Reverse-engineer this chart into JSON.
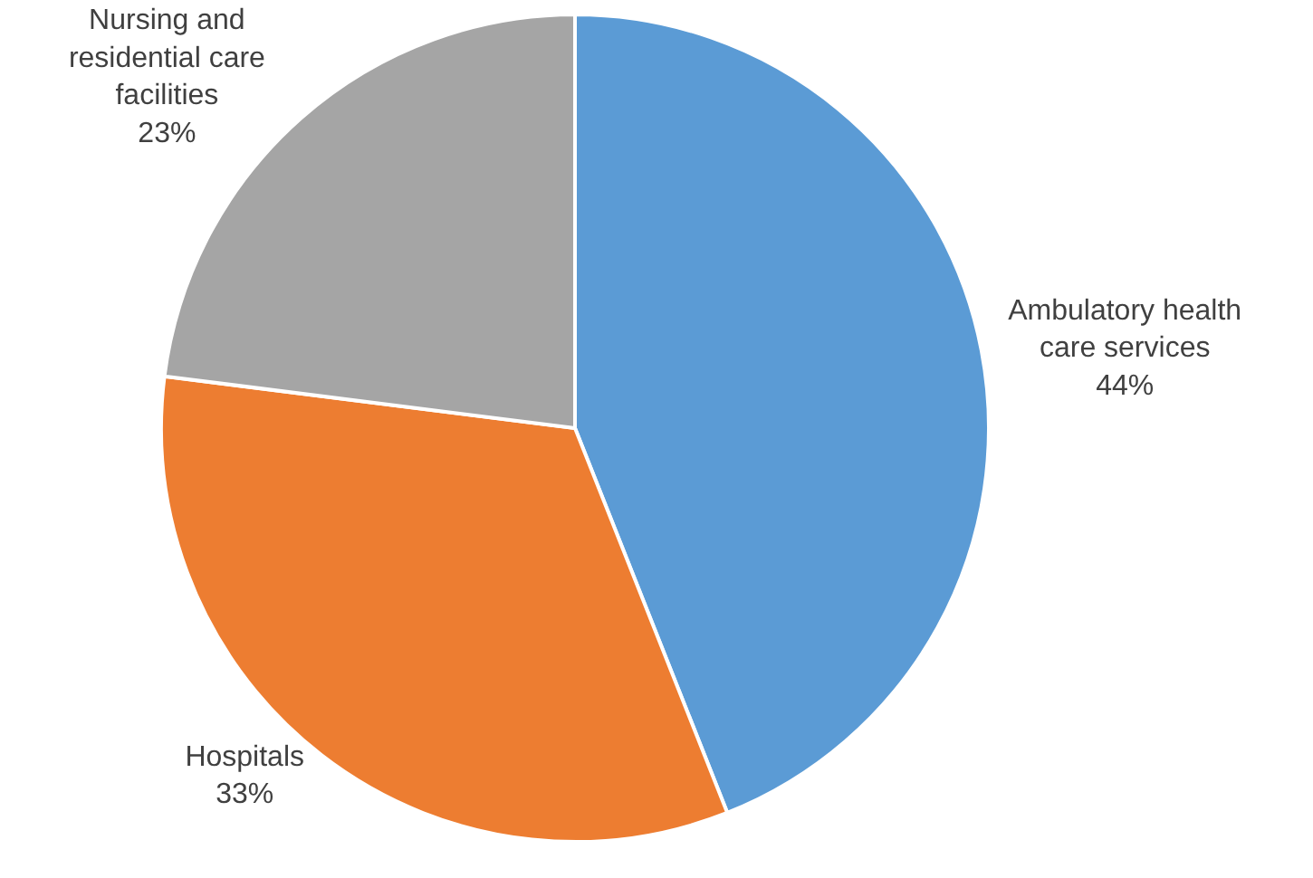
{
  "chart_data": {
    "type": "pie",
    "categories": [
      "Ambulatory health care services",
      "Hospitals",
      "Nursing and residential care facilities"
    ],
    "values": [
      44,
      33,
      23
    ],
    "value_labels": [
      "44%",
      "33%",
      "23%"
    ],
    "colors": [
      "#5b9bd5",
      "#ed7d31",
      "#a5a5a5"
    ],
    "legend": false
  }
}
